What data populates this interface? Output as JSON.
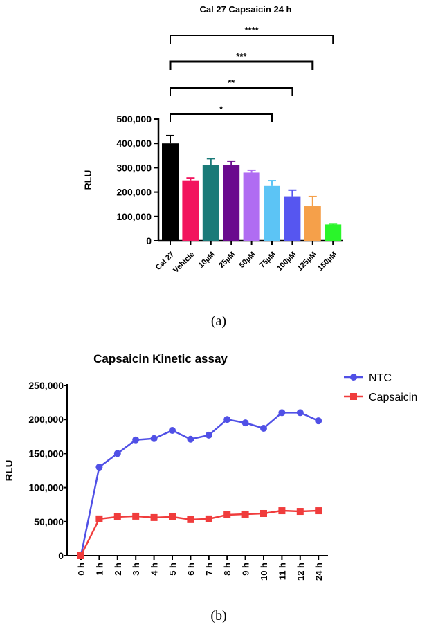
{
  "captions": {
    "a": "(a)",
    "b": "(b)"
  },
  "chart_data": [
    {
      "type": "bar",
      "title": "Cal 27 Capsaicin  24 h",
      "xlabel": "",
      "ylabel": "RLU",
      "ylim": [
        0,
        500000
      ],
      "yticks": [
        0,
        100000,
        200000,
        300000,
        400000,
        500000
      ],
      "ytick_labels": [
        "0",
        "100,000",
        "200,000",
        "300,000",
        "400,000",
        "500,000"
      ],
      "categories": [
        "Cal 27",
        "Vehicle",
        "10µM",
        "25µM",
        "50µM",
        "75µM",
        "100µM",
        "125µM",
        "150µM"
      ],
      "values": [
        400000,
        248000,
        312000,
        312000,
        280000,
        225000,
        183000,
        142000,
        67000
      ],
      "errors": [
        32000,
        10000,
        25000,
        15000,
        10000,
        22000,
        25000,
        40000,
        3000
      ],
      "colors": [
        "#000000",
        "#f2145e",
        "#1a7a78",
        "#6a0a8e",
        "#b06cf2",
        "#5cc4f5",
        "#5656f0",
        "#f5a04a",
        "#2af52a"
      ],
      "significance": [
        {
          "label": "*",
          "from": "Cal 27",
          "to": "75µM"
        },
        {
          "label": "**",
          "from": "Cal 27",
          "to": "100µM"
        },
        {
          "label": "***",
          "from": "Cal 27",
          "to": "125µM"
        },
        {
          "label": "****",
          "from": "Cal 27",
          "to": "150µM"
        }
      ]
    },
    {
      "type": "line",
      "title": "Capsaicin Kinetic assay",
      "xlabel": "",
      "ylabel": "RLU",
      "ylim": [
        0,
        250000
      ],
      "yticks": [
        0,
        50000,
        100000,
        150000,
        200000,
        250000
      ],
      "ytick_labels": [
        "0",
        "50,000",
        "100,000",
        "150,000",
        "200,000",
        "250,000"
      ],
      "categories": [
        "0 h",
        "1 h",
        "2 h",
        "3 h",
        "4 h",
        "5 h",
        "6 h",
        "7 h",
        "8 h",
        "9 h",
        "10 h",
        "11 h",
        "12 h",
        "24 h"
      ],
      "legend": "right",
      "series": [
        {
          "name": "NTC",
          "color": "#5050e6",
          "marker": "circle",
          "values": [
            0,
            130000,
            150000,
            170000,
            172000,
            184000,
            171000,
            177000,
            200000,
            195000,
            187000,
            210000,
            210000,
            198000
          ]
        },
        {
          "name": "Capsaicin",
          "color": "#f03c3c",
          "marker": "square",
          "values": [
            0,
            54000,
            57000,
            58000,
            56000,
            57000,
            53000,
            54000,
            60000,
            61000,
            62000,
            66000,
            65000,
            66000
          ]
        }
      ]
    }
  ]
}
